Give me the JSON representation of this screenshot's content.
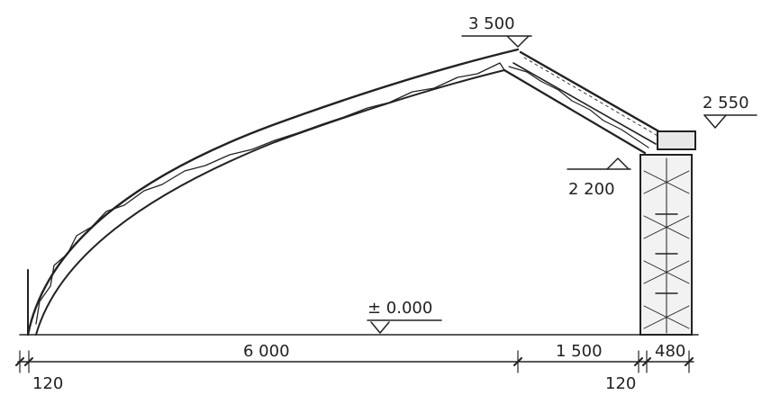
{
  "elevations": {
    "ridge": "3 500",
    "wall_top": "2 550",
    "beam_seat": "2 200",
    "ground": "± 0.000"
  },
  "dimensions": {
    "span": "6 000",
    "back_span": "1 500",
    "left_offset": "120",
    "wall_offset": "120",
    "wall_thickness": "480"
  }
}
